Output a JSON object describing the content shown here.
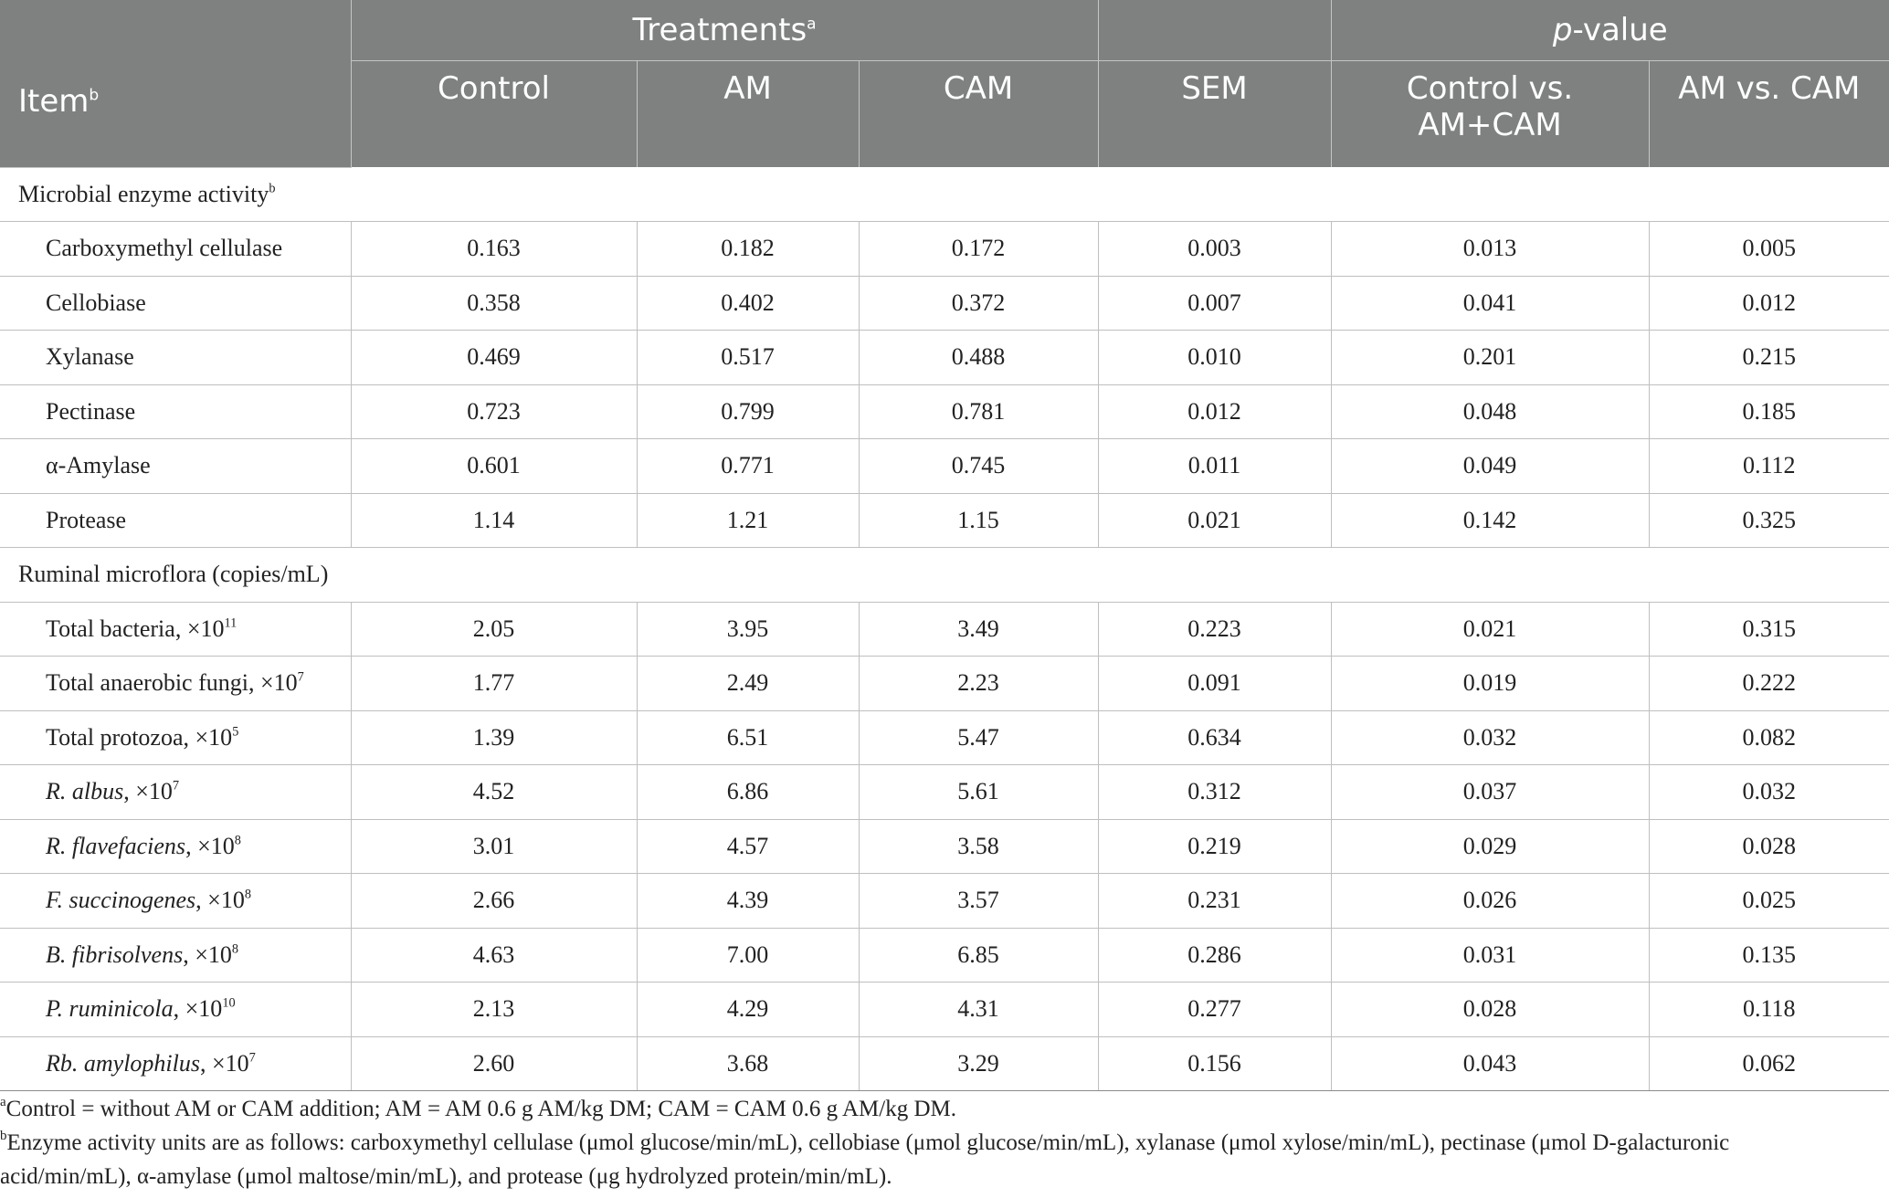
{
  "header": {
    "item": "Item",
    "item_sup": "b",
    "treatments": "Treatments",
    "treatments_sup": "a",
    "pvalue_italic": "p",
    "pvalue_rest": "-value",
    "columns": [
      "Control",
      "AM",
      "CAM",
      "SEM",
      "Control vs. AM+CAM",
      "AM vs. CAM"
    ]
  },
  "sections": [
    {
      "title": "Microbial enzyme activity",
      "title_sup": "b",
      "rows": [
        {
          "label": "Carboxymethyl cellulase",
          "values": [
            "0.163",
            "0.182",
            "0.172",
            "0.003",
            "0.013",
            "0.005"
          ]
        },
        {
          "label": "Cellobiase",
          "values": [
            "0.358",
            "0.402",
            "0.372",
            "0.007",
            "0.041",
            "0.012"
          ]
        },
        {
          "label": "Xylanase",
          "values": [
            "0.469",
            "0.517",
            "0.488",
            "0.010",
            "0.201",
            "0.215"
          ]
        },
        {
          "label": "Pectinase",
          "values": [
            "0.723",
            "0.799",
            "0.781",
            "0.012",
            "0.048",
            "0.185"
          ]
        },
        {
          "label": "α-Amylase",
          "values": [
            "0.601",
            "0.771",
            "0.745",
            "0.011",
            "0.049",
            "0.112"
          ]
        },
        {
          "label": "Protease",
          "values": [
            "1.14",
            "1.21",
            "1.15",
            "0.021",
            "0.142",
            "0.325"
          ]
        }
      ]
    },
    {
      "title": "Ruminal microflora (copies/mL)",
      "rows": [
        {
          "label": "Total bacteria, ×10",
          "exp": "11",
          "values": [
            "2.05",
            "3.95",
            "3.49",
            "0.223",
            "0.021",
            "0.315"
          ]
        },
        {
          "label": "Total anaerobic fungi, ×10",
          "exp": "7",
          "values": [
            "1.77",
            "2.49",
            "2.23",
            "0.091",
            "0.019",
            "0.222"
          ]
        },
        {
          "label": "Total protozoa, ×10",
          "exp": "5",
          "values": [
            "1.39",
            "6.51",
            "5.47",
            "0.634",
            "0.032",
            "0.082"
          ]
        },
        {
          "label_italic": "R. albus",
          "label_rest": ", ×10",
          "exp": "7",
          "values": [
            "4.52",
            "6.86",
            "5.61",
            "0.312",
            "0.037",
            "0.032"
          ]
        },
        {
          "label_italic": "R. flavefaciens",
          "label_rest": ", ×10",
          "exp": "8",
          "values": [
            "3.01",
            "4.57",
            "3.58",
            "0.219",
            "0.029",
            "0.028"
          ]
        },
        {
          "label_italic": "F. succinogenes",
          "label_rest": ", ×10",
          "exp": "8",
          "values": [
            "2.66",
            "4.39",
            "3.57",
            "0.231",
            "0.026",
            "0.025"
          ]
        },
        {
          "label_italic": "B. fibrisolvens",
          "label_rest": ", ×10",
          "exp": "8",
          "values": [
            "4.63",
            "7.00",
            "6.85",
            "0.286",
            "0.031",
            "0.135"
          ]
        },
        {
          "label_italic": "P. ruminicola",
          "label_rest": ", ×10",
          "exp": "10",
          "values": [
            "2.13",
            "4.29",
            "4.31",
            "0.277",
            "0.028",
            "0.118"
          ]
        },
        {
          "label_italic": "Rb. amylophilus",
          "label_rest": ", ×10",
          "exp": "7",
          "values": [
            "2.60",
            "3.68",
            "3.29",
            "0.156",
            "0.043",
            "0.062"
          ]
        }
      ]
    }
  ],
  "footnotes": [
    {
      "mark": "a",
      "text": "Control = without AM or CAM addition; AM = AM 0.6 g AM/kg DM; CAM = CAM 0.6 g AM/kg DM."
    },
    {
      "mark": "b",
      "text": "Enzyme activity units are as follows: carboxymethyl cellulase (μmol glucose/min/mL), cellobiase (μmol glucose/min/mL), xylanase (μmol xylose/min/mL), pectinase (μmol D-galacturonic acid/min/mL), α-amylase (μmol maltose/min/mL), and protease (μg hydrolyzed protein/min/mL)."
    }
  ],
  "colors": {
    "header_bg": "#7f8181",
    "header_text": "#ffffff",
    "rule": "#bfbfbf"
  }
}
